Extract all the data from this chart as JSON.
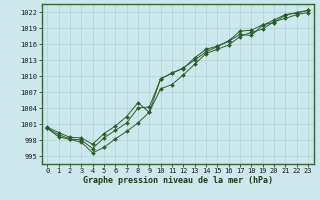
{
  "title": "Graphe pression niveau de la mer (hPa)",
  "bg_color": "#cce8ec",
  "grid_color": "#aacccc",
  "line_color": "#2a5e2a",
  "marker_color": "#2a5e2a",
  "x_values": [
    0,
    1,
    2,
    3,
    4,
    5,
    6,
    7,
    8,
    9,
    10,
    11,
    12,
    13,
    14,
    15,
    16,
    17,
    18,
    19,
    20,
    21,
    22,
    23
  ],
  "series1": [
    1000.2,
    998.6,
    998.1,
    997.6,
    995.6,
    996.6,
    998.2,
    999.6,
    1001.2,
    1003.2,
    1009.5,
    1010.5,
    1011.5,
    1013.0,
    1014.5,
    1015.5,
    1016.5,
    1017.8,
    1017.6,
    1019.5,
    1020.5,
    1021.5,
    1021.8,
    1022.3
  ],
  "series2": [
    1000.2,
    999.0,
    998.2,
    998.0,
    996.4,
    998.4,
    999.8,
    1001.2,
    1004.0,
    1004.2,
    1009.4,
    1010.6,
    1011.4,
    1013.4,
    1015.0,
    1015.6,
    1016.6,
    1018.4,
    1018.6,
    1019.6,
    1020.0,
    1021.4,
    1021.9,
    1022.3
  ],
  "series3": [
    1000.4,
    999.4,
    998.5,
    998.4,
    997.2,
    999.2,
    1000.6,
    1002.4,
    1005.0,
    1003.2,
    1007.6,
    1008.4,
    1010.2,
    1012.2,
    1014.2,
    1015.0,
    1015.8,
    1017.4,
    1018.2,
    1018.8,
    1020.2,
    1020.8,
    1021.5,
    1021.9
  ],
  "ylim_min": 993.5,
  "ylim_max": 1023.5,
  "ytick_values": [
    995,
    998,
    1001,
    1004,
    1007,
    1010,
    1013,
    1016,
    1019,
    1022
  ],
  "xlim_min": -0.5,
  "xlim_max": 23.5,
  "spine_color": "#336633",
  "tick_fontsize": 5,
  "label_fontsize": 6
}
